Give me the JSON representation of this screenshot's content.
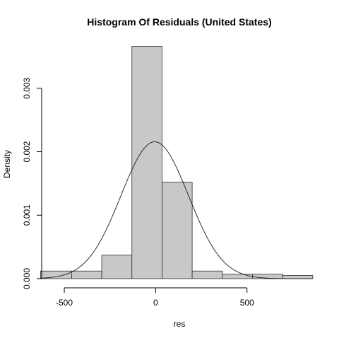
{
  "chart_data": {
    "type": "bar",
    "subtype": "histogram-with-density-curve",
    "title": "Histogram Of Residuals (United States)",
    "xlabel": "res",
    "ylabel": "Density",
    "xlim": [
      -620,
      880
    ],
    "ylim": [
      0,
      0.0037
    ],
    "x_ticks": [
      {
        "value": -500,
        "label": "-500"
      },
      {
        "value": 0,
        "label": "0"
      },
      {
        "value": 500,
        "label": "500"
      }
    ],
    "y_ticks": [
      {
        "value": 0.0,
        "label": "0.000"
      },
      {
        "value": 0.001,
        "label": "0.001"
      },
      {
        "value": 0.002,
        "label": "0.002"
      },
      {
        "value": 0.003,
        "label": "0.003"
      }
    ],
    "bins": [
      {
        "x0": -630,
        "x1": -460,
        "density": 0.00012
      },
      {
        "x0": -460,
        "x1": -295,
        "density": 0.00012
      },
      {
        "x0": -295,
        "x1": -130,
        "density": 0.00037
      },
      {
        "x0": -130,
        "x1": 35,
        "density": 0.00366
      },
      {
        "x0": 35,
        "x1": 200,
        "density": 0.00152
      },
      {
        "x0": 200,
        "x1": 365,
        "density": 0.00012
      },
      {
        "x0": 365,
        "x1": 530,
        "density": 7e-05
      },
      {
        "x0": 530,
        "x1": 695,
        "density": 7e-05
      },
      {
        "x0": 695,
        "x1": 860,
        "density": 5e-05
      }
    ],
    "density_curve": {
      "distribution": "normal",
      "mean": -5,
      "sd": 185,
      "peak_density": 0.00216
    },
    "grid": false,
    "legend": "none",
    "colors": {
      "bar_fill": "#c8c8c8",
      "bar_stroke": "#2b2b2b",
      "curve": "#1a1a1a",
      "axis": "#000000",
      "background": "#ffffff"
    }
  }
}
